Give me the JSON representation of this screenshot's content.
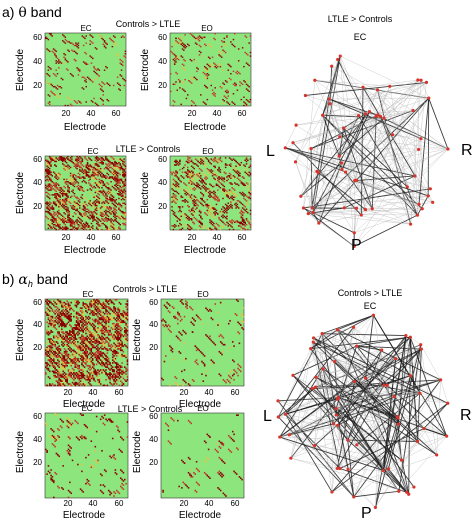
{
  "panel_a": {
    "title_prefix": "a) ",
    "symbol": "θ",
    "title_suffix": " band",
    "row1_label": "Controls > LTLE",
    "row2_label": "LTLE > Controls",
    "ec": "EC",
    "eo": "EO",
    "xlabel": "Electrode",
    "ylabel": "Electrode",
    "yticks": [
      "60",
      "40",
      "20"
    ],
    "xticks": [
      "20",
      "40",
      "60"
    ],
    "graph": {
      "title": "LTLE > Controls",
      "subtitle": "EC",
      "left": "L",
      "right": "R",
      "bottom": "P"
    }
  },
  "panel_b": {
    "title_prefix": "b) ",
    "symbol": "α",
    "subscript": "h",
    "title_suffix": " band",
    "row1_label": "Controls > LTLE",
    "row2_label": "LTLE > Controls",
    "ec": "EC",
    "eo": "EO",
    "xlabel": "Electrode",
    "ylabel": "Electrode",
    "yticks": [
      "60",
      "40",
      "20"
    ],
    "xticks": [
      "20",
      "40",
      "60"
    ],
    "graph": {
      "title": "Controls > LTLE",
      "subtitle": "EC",
      "left": "L",
      "right": "R",
      "bottom": "P"
    }
  },
  "colors": {
    "matrix_bg": "#8de57e",
    "sig_dark": "#8b0000",
    "sig_mid": "#c0392b",
    "sig_light": "#e8c040",
    "node": "#d9342b",
    "edge_light": "#b8b8b8",
    "edge_dark": "#1e1e1e"
  }
}
